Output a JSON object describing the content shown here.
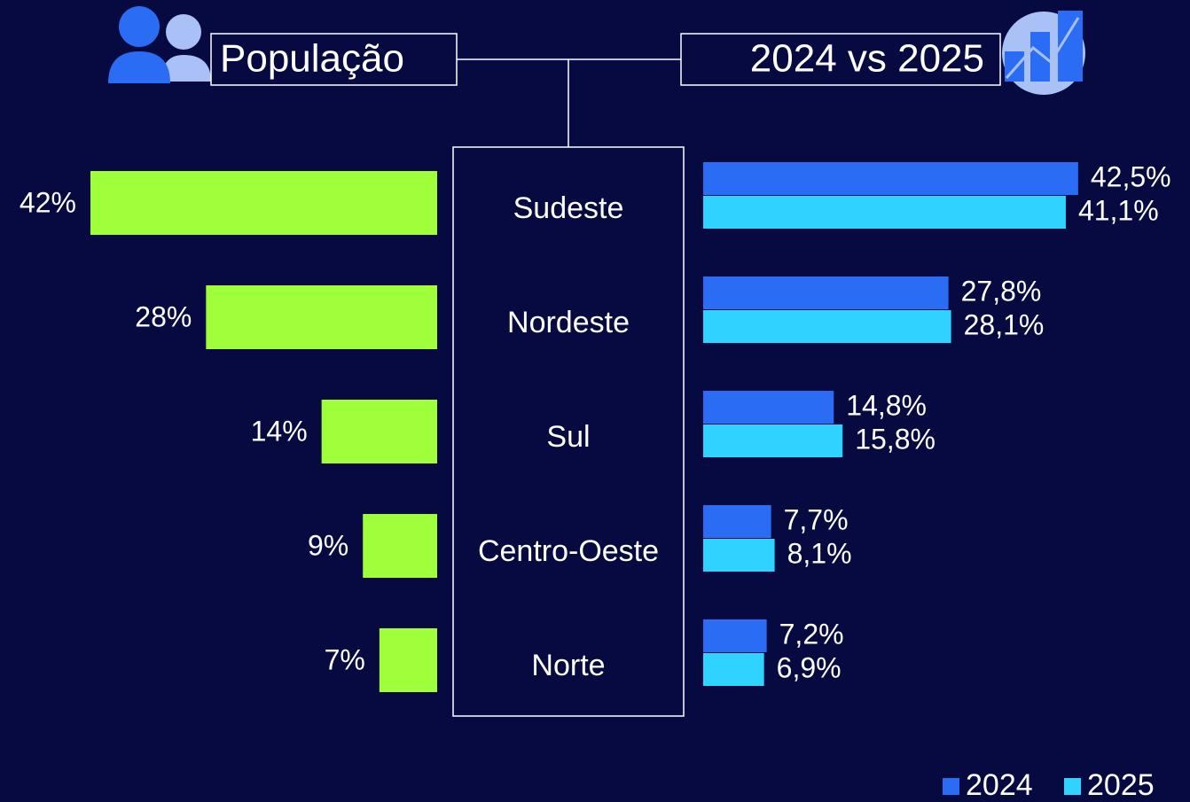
{
  "chart_data": [
    {
      "type": "bar",
      "title": "População",
      "categories": [
        "Sudeste",
        "Nordeste",
        "Sul",
        "Centro-Oeste",
        "Norte"
      ],
      "values": [
        42,
        28,
        14,
        9,
        7
      ],
      "value_labels": [
        "42%",
        "28%",
        "14%",
        "9%",
        "7%"
      ],
      "color": "#9eff3a"
    },
    {
      "type": "grouped-bar",
      "title": "2024 vs 2025",
      "series": [
        {
          "name": "2024",
          "color": "#2b6cf5",
          "values": [
            42.5,
            27.8,
            14.8,
            7.7,
            7.2
          ],
          "value_labels": [
            "42,5%",
            "27,8%",
            "14,8%",
            "7,7%",
            "7,2%"
          ]
        },
        {
          "name": "2025",
          "color": "#2ed3ff",
          "values": [
            41.1,
            28.1,
            15.8,
            8.1,
            6.9
          ],
          "value_labels": [
            "41,1%",
            "28,1%",
            "15,8%",
            "8,1%",
            "6,9%"
          ]
        }
      ],
      "legend": "bottom-right"
    }
  ]
}
